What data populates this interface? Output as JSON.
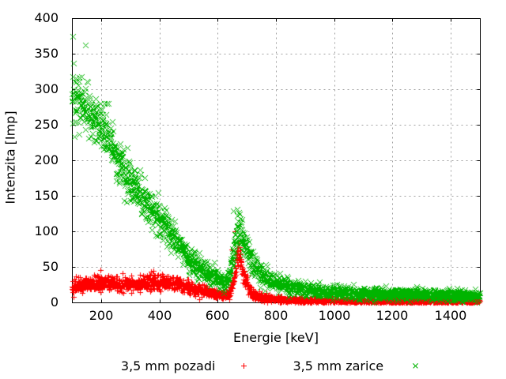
{
  "chart_data": {
    "type": "scatter",
    "title": "",
    "xlabel": "Energie [keV]",
    "ylabel": "Intenzita [Imp]",
    "xlim": [
      100,
      1500
    ],
    "ylim": [
      0,
      400
    ],
    "x_ticks": [
      200,
      400,
      600,
      800,
      1000,
      1200,
      1400
    ],
    "y_ticks": [
      0,
      50,
      100,
      150,
      200,
      250,
      300,
      350,
      400
    ],
    "grid": true,
    "legend_position": "below-center",
    "x_step_keV": 0.7,
    "noise_model": "sigma = k * sqrt(mean)",
    "series": [
      {
        "name": "3,5 mm pozadi",
        "color": "#ff0000",
        "marker": "plus",
        "noise_k": 1.05,
        "mean_keypoints": [
          [
            100,
            24
          ],
          [
            130,
            25
          ],
          [
            160,
            26
          ],
          [
            200,
            27
          ],
          [
            250,
            26
          ],
          [
            300,
            27
          ],
          [
            350,
            28
          ],
          [
            400,
            28
          ],
          [
            430,
            28
          ],
          [
            450,
            27
          ],
          [
            470,
            25
          ],
          [
            490,
            22
          ],
          [
            510,
            20
          ],
          [
            530,
            18
          ],
          [
            550,
            16
          ],
          [
            570,
            14
          ],
          [
            590,
            12
          ],
          [
            610,
            10
          ],
          [
            620,
            9
          ],
          [
            630,
            9.5
          ],
          [
            640,
            13
          ],
          [
            650,
            22
          ],
          [
            656,
            35
          ],
          [
            661,
            48
          ],
          [
            666,
            62
          ],
          [
            670,
            72
          ],
          [
            674,
            70
          ],
          [
            678,
            62
          ],
          [
            683,
            52
          ],
          [
            688,
            42
          ],
          [
            694,
            33
          ],
          [
            700,
            26
          ],
          [
            708,
            19
          ],
          [
            715,
            14
          ],
          [
            722,
            11.5
          ],
          [
            730,
            9.5
          ],
          [
            740,
            8.5
          ],
          [
            750,
            7.5
          ],
          [
            770,
            6
          ],
          [
            800,
            4.5
          ],
          [
            850,
            3.5
          ],
          [
            900,
            3
          ],
          [
            1000,
            2.5
          ],
          [
            1200,
            2
          ],
          [
            1500,
            2
          ]
        ],
        "outliers": [
          [
            197,
            46
          ],
          [
            648,
            75
          ],
          [
            660,
            100
          ]
        ]
      },
      {
        "name": "3,5 mm zarice",
        "color": "#00b400",
        "marker": "cross",
        "noise_k": 1.15,
        "mean_keypoints": [
          [
            100,
            295
          ],
          [
            125,
            282
          ],
          [
            150,
            270
          ],
          [
            175,
            260
          ],
          [
            200,
            252
          ],
          [
            225,
            230
          ],
          [
            250,
            205
          ],
          [
            275,
            185
          ],
          [
            300,
            168
          ],
          [
            325,
            155
          ],
          [
            350,
            143
          ],
          [
            375,
            130
          ],
          [
            400,
            118
          ],
          [
            425,
            105
          ],
          [
            450,
            92
          ],
          [
            475,
            76
          ],
          [
            500,
            63
          ],
          [
            525,
            54
          ],
          [
            550,
            47
          ],
          [
            575,
            40
          ],
          [
            600,
            33
          ],
          [
            615,
            29
          ],
          [
            625,
            28
          ],
          [
            635,
            32
          ],
          [
            645,
            45
          ],
          [
            655,
            70
          ],
          [
            662,
            92
          ],
          [
            668,
            106
          ],
          [
            674,
            103
          ],
          [
            680,
            97
          ],
          [
            690,
            85
          ],
          [
            700,
            74
          ],
          [
            710,
            65
          ],
          [
            720,
            57
          ],
          [
            730,
            50
          ],
          [
            740,
            44
          ],
          [
            750,
            40
          ],
          [
            760,
            37
          ],
          [
            780,
            31
          ],
          [
            800,
            28
          ],
          [
            850,
            22
          ],
          [
            900,
            18.5
          ],
          [
            950,
            16
          ],
          [
            1000,
            14.5
          ],
          [
            1100,
            13
          ],
          [
            1200,
            12
          ],
          [
            1300,
            11
          ],
          [
            1400,
            10
          ],
          [
            1500,
            9
          ]
        ],
        "outliers": [
          [
            104,
            374
          ],
          [
            145,
            362
          ],
          [
            314,
            178
          ],
          [
            653,
            129
          ]
        ]
      }
    ]
  },
  "style": {
    "background": "#ffffff",
    "grid_color": "#a0a0a0",
    "axis_color": "#000000"
  }
}
